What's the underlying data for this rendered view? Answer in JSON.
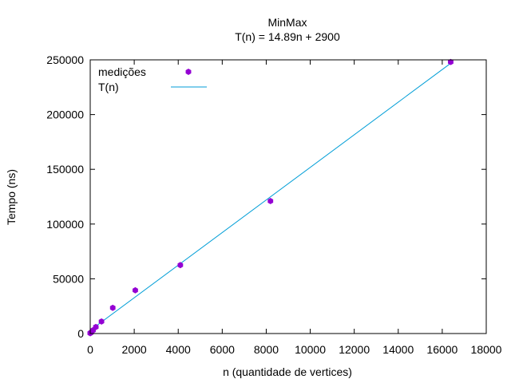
{
  "chart_data": {
    "type": "scatter",
    "title": "MinMax",
    "subtitle": "T(n) = 14.89n + 2900",
    "xlabel": "n (quantidade de vertices)",
    "ylabel": "Tempo (ns)",
    "xlim": [
      0,
      18000
    ],
    "ylim": [
      0,
      250000
    ],
    "x_ticks": [
      0,
      2000,
      4000,
      6000,
      8000,
      10000,
      12000,
      14000,
      16000,
      18000
    ],
    "y_ticks": [
      0,
      50000,
      100000,
      150000,
      200000,
      250000
    ],
    "grid": false,
    "legend_position": "top-left",
    "series": [
      {
        "name": "medições",
        "kind": "points",
        "color": "#9400d3",
        "x": [
          2,
          4,
          8,
          16,
          32,
          64,
          128,
          256,
          512,
          1024,
          2048,
          4096,
          8192,
          16384
        ],
        "y": [
          300,
          400,
          500,
          700,
          900,
          1300,
          3000,
          6000,
          11000,
          23500,
          39500,
          62500,
          121000,
          248000
        ]
      },
      {
        "name": "T(n)",
        "kind": "line",
        "color": "#009ed7",
        "slope": 14.89,
        "intercept": 2900
      }
    ]
  }
}
